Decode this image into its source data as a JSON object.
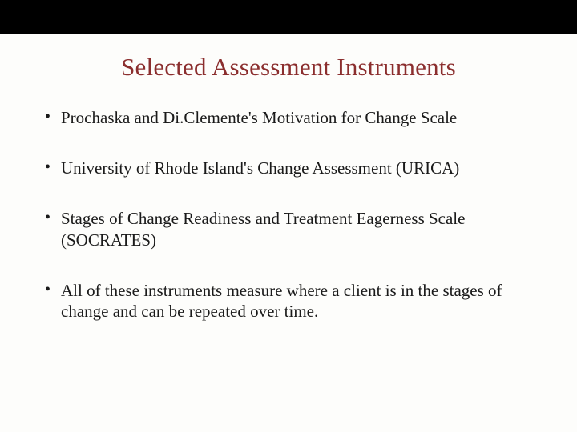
{
  "slide": {
    "title": "Selected Assessment Instruments",
    "title_color": "#8b2e2e",
    "title_fontsize": 31,
    "body_fontsize": 21,
    "background_color": "#fdfdfb",
    "topbar_color": "#000000",
    "bullets": [
      "Prochaska and Di.Clemente's Motivation for Change Scale",
      "University of Rhode Island's Change Assessment (URICA)",
      "Stages of Change Readiness and Treatment Eagerness Scale (SOCRATES)",
      "All of these instruments measure where a client is in the stages of change and can be repeated over time."
    ]
  }
}
